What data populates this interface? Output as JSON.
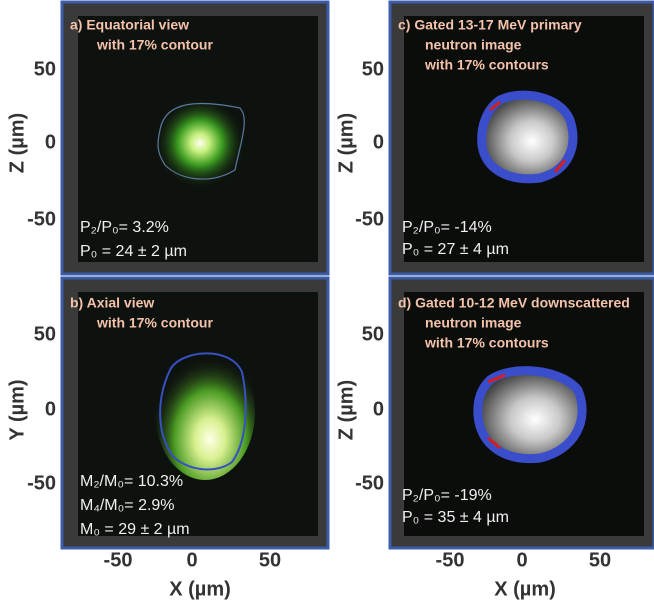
{
  "panels": [
    {
      "title": "a)  Equatorial view",
      "subtitle": "with 17% contour",
      "stats": [
        "P₂/P₀= 3.2%",
        "P₀ = 24 ± 2 µm"
      ]
    },
    {
      "title": "b)  Axial view",
      "subtitle": "with 17% contour",
      "stats": [
        "M₂/M₀= 10.3%",
        "M₄/M₀= 2.9%",
        "M₀ = 29 ± 2 µm"
      ]
    },
    {
      "title": "c)  Gated 13-17 MeV primary",
      "subtitle": "neutron image",
      "subtitle2": "with 17% contours",
      "stats": [
        "P₂/P₀= -14%",
        "P₀ = 27 ± 4 µm"
      ]
    },
    {
      "title": "d)  Gated 10-12 MeV downscattered",
      "subtitle": "neutron image",
      "subtitle2": "with 17% contours",
      "stats": [
        "P₂/P₀= -19%",
        "P₀ = 35 ± 4 µm"
      ]
    }
  ],
  "axes": {
    "left_top": {
      "label": "Z (µm)",
      "ticks": [
        "50",
        "0",
        "-50"
      ]
    },
    "left_bottom": {
      "label": "Y (µm)",
      "ticks": [
        "50",
        "0",
        "-50"
      ]
    },
    "right_top": {
      "label": "Z (µm)",
      "ticks": [
        "50",
        "0",
        "-50"
      ]
    },
    "right_bottom": {
      "label": "Z (µm)",
      "ticks": [
        "50",
        "0",
        "-50"
      ]
    },
    "bottom_left": {
      "label": "X (µm)",
      "ticks": [
        "-50",
        "0",
        "50"
      ]
    },
    "bottom_right": {
      "label": "X (µm)",
      "ticks": [
        "-50",
        "0",
        "50"
      ]
    }
  }
}
